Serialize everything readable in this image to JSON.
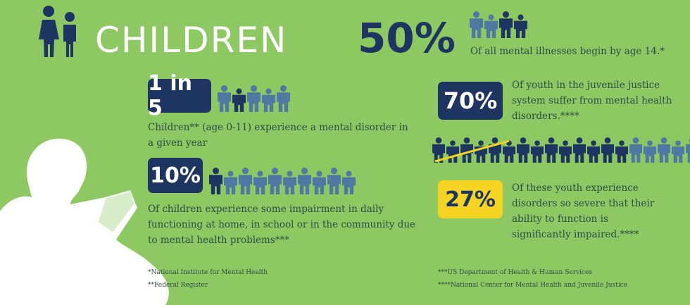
{
  "header": {
    "title": "CHILDREN"
  },
  "stat_50": {
    "value": "50%",
    "text": "Of all mental illnesses begin by age 14.*",
    "figures_total": 4,
    "figures_highlight": 2
  },
  "stat_1in5": {
    "value": "1 in 5",
    "text": "Children** (age 0-11) experience a mental disorder in a given year",
    "figures_total": 5,
    "figures_highlight": 1
  },
  "stat_10": {
    "value": "10%",
    "text": "Of children experience some impairment in daily functioning at home, in school or in the community due to mental health problems***",
    "figures_total": 10,
    "figures_highlight": 1
  },
  "stat_70": {
    "value": "70%",
    "text": "Of youth in the juvenile justice system suffer from mental health disorders.****",
    "figures_total": 20,
    "figures_highlight": 14,
    "figures_crossed": 5
  },
  "stat_27": {
    "value": "27%",
    "text": "Of these youth experience disorders so severe that their ability to function is significantly impaired.****"
  },
  "footnotes": {
    "f1": "*National Institute for Mental Health",
    "f2": "**Federal Register",
    "f3": "***US Department of Health & Human Services",
    "f4": "****National Center for Mental Health and Juvenile Justice"
  },
  "colors": {
    "background": "#8dc862",
    "navy": "#1f3561",
    "light_figure": "#4f78a3",
    "yellow": "#f5d423"
  }
}
